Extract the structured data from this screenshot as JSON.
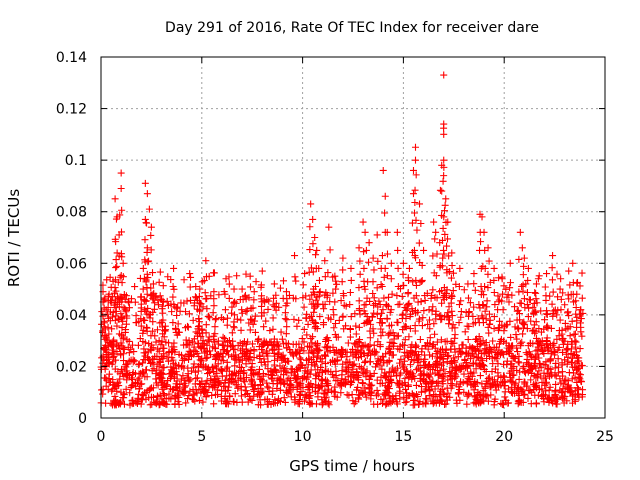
{
  "chart_data": {
    "type": "scatter",
    "title": "Day 291 of 2016, Rate Of TEC Index for receiver dare",
    "xlabel": "GPS time / hours",
    "ylabel": "ROTI / TECUs",
    "xlim": [
      0,
      25
    ],
    "ylim": [
      0,
      0.14
    ],
    "xticks": [
      0,
      5,
      10,
      15,
      20,
      25
    ],
    "xtick_labels": [
      "0",
      "5",
      "10",
      "15",
      "20",
      "25"
    ],
    "yticks": [
      0,
      0.02,
      0.04,
      0.06,
      0.08,
      0.1,
      0.12,
      0.14
    ],
    "ytick_labels": [
      "0",
      "0.02",
      "0.04",
      "0.06",
      "0.08",
      "0.1",
      "0.12",
      "0.14"
    ],
    "grid": true,
    "marker": "+",
    "color": "#ff0000",
    "series": [
      {
        "name": "ROTI",
        "points": [
          [
            0.1,
            0.049
          ],
          [
            0.1,
            0.045
          ],
          [
            0.2,
            0.032
          ],
          [
            0.3,
            0.021
          ],
          [
            0.4,
            0.048
          ],
          [
            0.7,
            0.085
          ],
          [
            0.8,
            0.078
          ],
          [
            0.9,
            0.071
          ],
          [
            1.0,
            0.095
          ],
          [
            1.0,
            0.089
          ],
          [
            0.8,
            0.064
          ],
          [
            1.1,
            0.06
          ],
          [
            1.2,
            0.046
          ],
          [
            0.6,
            0.053
          ],
          [
            2.2,
            0.091
          ],
          [
            2.3,
            0.087
          ],
          [
            2.4,
            0.081
          ],
          [
            2.2,
            0.077
          ],
          [
            2.5,
            0.074
          ],
          [
            2.3,
            0.066
          ],
          [
            2.1,
            0.058
          ],
          [
            2.6,
            0.052
          ],
          [
            2.0,
            0.047
          ],
          [
            3.0,
            0.046
          ],
          [
            3.6,
            0.058
          ],
          [
            3.8,
            0.043
          ],
          [
            4.4,
            0.056
          ],
          [
            4.9,
            0.05
          ],
          [
            5.2,
            0.061
          ],
          [
            5.6,
            0.049
          ],
          [
            6.2,
            0.054
          ],
          [
            6.6,
            0.05
          ],
          [
            7.0,
            0.05
          ],
          [
            7.4,
            0.055
          ],
          [
            7.6,
            0.049
          ],
          [
            8.0,
            0.057
          ],
          [
            8.6,
            0.052
          ],
          [
            9.2,
            0.049
          ],
          [
            9.6,
            0.063
          ],
          [
            10.1,
            0.056
          ],
          [
            10.4,
            0.083
          ],
          [
            10.5,
            0.077
          ],
          [
            10.6,
            0.07
          ],
          [
            10.7,
            0.065
          ],
          [
            10.8,
            0.058
          ],
          [
            11.3,
            0.074
          ],
          [
            11.1,
            0.061
          ],
          [
            11.6,
            0.055
          ],
          [
            12.0,
            0.062
          ],
          [
            12.4,
            0.058
          ],
          [
            12.8,
            0.066
          ],
          [
            13.0,
            0.076
          ],
          [
            13.1,
            0.072
          ],
          [
            13.3,
            0.068
          ],
          [
            13.5,
            0.062
          ],
          [
            13.7,
            0.071
          ],
          [
            13.9,
            0.058
          ],
          [
            14.0,
            0.096
          ],
          [
            14.1,
            0.086
          ],
          [
            14.2,
            0.072
          ],
          [
            14.4,
            0.06
          ],
          [
            14.7,
            0.072
          ],
          [
            15.0,
            0.06
          ],
          [
            15.3,
            0.058
          ],
          [
            15.5,
            0.087
          ],
          [
            15.5,
            0.096
          ],
          [
            15.6,
            0.1
          ],
          [
            15.6,
            0.105
          ],
          [
            15.8,
            0.083
          ],
          [
            16.0,
            0.065
          ],
          [
            16.5,
            0.076
          ],
          [
            16.6,
            0.072
          ],
          [
            16.8,
            0.068
          ],
          [
            16.9,
            0.098
          ],
          [
            16.9,
            0.088
          ],
          [
            17.0,
            0.133
          ],
          [
            17.0,
            0.114
          ],
          [
            17.0,
            0.11
          ],
          [
            17.0,
            0.1
          ],
          [
            17.1,
            0.085
          ],
          [
            17.2,
            0.076
          ],
          [
            17.4,
            0.064
          ],
          [
            17.8,
            0.058
          ],
          [
            18.2,
            0.052
          ],
          [
            18.5,
            0.056
          ],
          [
            18.8,
            0.079
          ],
          [
            18.9,
            0.078
          ],
          [
            19.0,
            0.072
          ],
          [
            19.2,
            0.066
          ],
          [
            19.5,
            0.058
          ],
          [
            19.9,
            0.054
          ],
          [
            20.3,
            0.06
          ],
          [
            20.8,
            0.072
          ],
          [
            20.9,
            0.066
          ],
          [
            21.0,
            0.062
          ],
          [
            21.2,
            0.058
          ],
          [
            21.6,
            0.052
          ],
          [
            22.1,
            0.056
          ],
          [
            22.4,
            0.063
          ],
          [
            22.8,
            0.054
          ],
          [
            23.2,
            0.057
          ],
          [
            23.4,
            0.06
          ],
          [
            23.6,
            0.048
          ],
          [
            23.8,
            0.042
          ]
        ],
        "baseline_band": {
          "x_range": [
            0,
            23.9
          ],
          "y_min": 0.005,
          "y_typical_max": 0.03
        }
      }
    ]
  }
}
